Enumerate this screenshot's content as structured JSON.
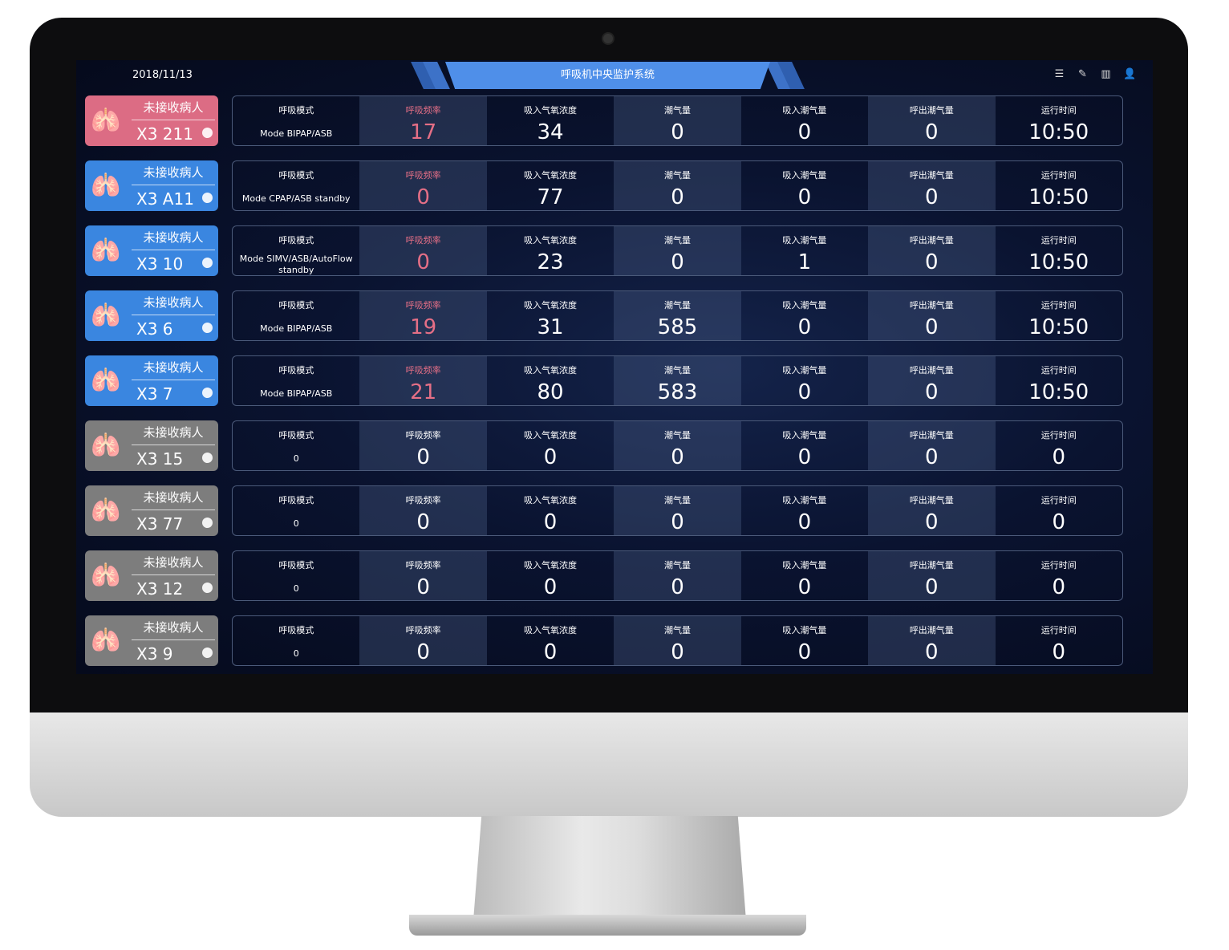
{
  "header": {
    "date": "2018/11/13",
    "title": "呼吸机中央监护系统",
    "icons": [
      "list-icon",
      "edit-icon",
      "layout-icon",
      "user-icon"
    ]
  },
  "colors": {
    "pink": "#dc6c84",
    "blue": "#3a86e0",
    "gray": "#7d7d7d",
    "alert_text": "#e56f86"
  },
  "labels": [
    "呼吸模式",
    "呼吸频率",
    "吸入气氧浓度",
    "潮气量",
    "吸入潮气量",
    "呼出潮气量",
    "运行时间"
  ],
  "rows": [
    {
      "status": "未接收病人",
      "id": "X3 211",
      "color": "pink",
      "mode": "Mode BIPAP/ASB",
      "values": [
        "17",
        "34",
        "0",
        "0",
        "0",
        "10:50"
      ],
      "alert": true
    },
    {
      "status": "未接收病人",
      "id": "X3 A11",
      "color": "blue",
      "mode": "Mode CPAP/ASB standby",
      "values": [
        "0",
        "77",
        "0",
        "0",
        "0",
        "10:50"
      ],
      "alert": true
    },
    {
      "status": "未接收病人",
      "id": "X3 10",
      "color": "blue",
      "mode": "Mode SIMV/ASB/AutoFlow standby",
      "values": [
        "0",
        "23",
        "0",
        "1",
        "0",
        "10:50"
      ],
      "alert": true
    },
    {
      "status": "未接收病人",
      "id": "X3 6",
      "color": "blue",
      "mode": "Mode BIPAP/ASB",
      "values": [
        "19",
        "31",
        "585",
        "0",
        "0",
        "10:50"
      ],
      "alert": true
    },
    {
      "status": "未接收病人",
      "id": "X3 7",
      "color": "blue",
      "mode": "Mode BIPAP/ASB",
      "values": [
        "21",
        "80",
        "583",
        "0",
        "0",
        "10:50"
      ],
      "alert": true
    },
    {
      "status": "未接收病人",
      "id": "X3 15",
      "color": "gray",
      "mode": "0",
      "values": [
        "0",
        "0",
        "0",
        "0",
        "0",
        "0"
      ],
      "alert": false
    },
    {
      "status": "未接收病人",
      "id": "X3 77",
      "color": "gray",
      "mode": "0",
      "values": [
        "0",
        "0",
        "0",
        "0",
        "0",
        "0"
      ],
      "alert": false
    },
    {
      "status": "未接收病人",
      "id": "X3 12",
      "color": "gray",
      "mode": "0",
      "values": [
        "0",
        "0",
        "0",
        "0",
        "0",
        "0"
      ],
      "alert": false
    },
    {
      "status": "未接收病人",
      "id": "X3 9",
      "color": "gray",
      "mode": "0",
      "values": [
        "0",
        "0",
        "0",
        "0",
        "0",
        "0"
      ],
      "alert": false
    }
  ]
}
